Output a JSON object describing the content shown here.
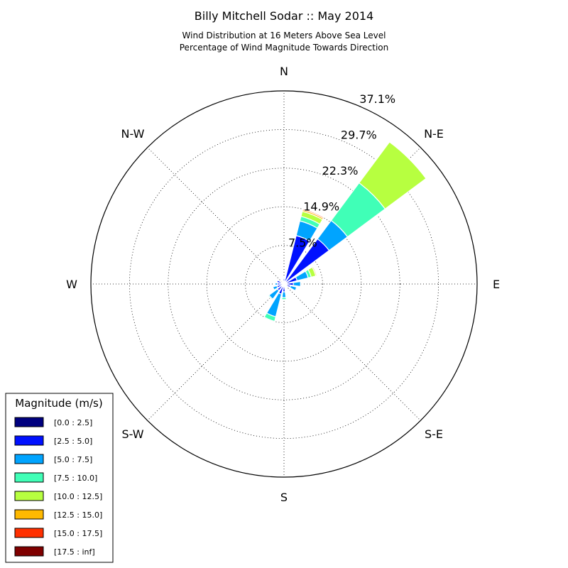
{
  "chart_data": {
    "type": "windrose",
    "title": "Billy Mitchell Sodar :: May 2014",
    "subtitle_lines": [
      "Wind Distribution at 16 Meters Above Sea Level",
      "Percentage of Wind Magnitude Towards Direction"
    ],
    "directions": [
      "N",
      "N-E",
      "E",
      "S-E",
      "S",
      "S-W",
      "W",
      "N-W"
    ],
    "ring_labels": [
      "7.5%",
      "14.9%",
      "22.3%",
      "29.7%",
      "37.1%"
    ],
    "r_max": 37.1,
    "grid": true,
    "legend": {
      "title": "Magnitude (m/s)",
      "placement": "bottom-left",
      "entries": [
        {
          "label": "[0.0 : 2.5]",
          "color": "#00007f"
        },
        {
          "label": "[2.5 : 5.0]",
          "color": "#0010ff"
        },
        {
          "label": "[5.0 : 7.5]",
          "color": "#00a4ff"
        },
        {
          "label": "[7.5 : 10.0]",
          "color": "#40ffb7"
        },
        {
          "label": "[10.0 : 12.5]",
          "color": "#b7ff40"
        },
        {
          "label": "[12.5 : 15.0]",
          "color": "#ffb900"
        },
        {
          "label": "[15.0 : 17.5]",
          "color": "#ff3000"
        },
        {
          "label": "[17.5 : inf]",
          "color": "#7f0000"
        }
      ]
    },
    "sectors": [
      {
        "angle": 0,
        "cumulative": [
          0.3,
          1.0,
          1.2,
          1.3
        ]
      },
      {
        "angle": 22.5,
        "cumulative": [
          0.5,
          9.6,
          12.5,
          13.4,
          14.4,
          14.7,
          14.9
        ]
      },
      {
        "angle": 45,
        "cumulative": [
          0.5,
          10.8,
          15.2,
          24.2,
          34.0,
          34.1
        ]
      },
      {
        "angle": 67.5,
        "cumulative": [
          0.3,
          2.6,
          4.8,
          5.4,
          6.3,
          6.5
        ]
      },
      {
        "angle": 90,
        "cumulative": [
          0.2,
          1.8,
          3.2,
          3.3
        ]
      },
      {
        "angle": 112.5,
        "cumulative": [
          0.2,
          1.3,
          2.5,
          2.6
        ]
      },
      {
        "angle": 135,
        "cumulative": [
          0.2,
          0.6,
          0.7
        ]
      },
      {
        "angle": 157.5,
        "cumulative": [
          0.1,
          0.3,
          0.4
        ]
      },
      {
        "angle": 180,
        "cumulative": [
          0.2,
          1.5,
          2.6,
          3.0
        ]
      },
      {
        "angle": 202.5,
        "cumulative": [
          0.3,
          2.0,
          6.5,
          7.4
        ]
      },
      {
        "angle": 225,
        "cumulative": [
          0.3,
          1.6,
          3.6,
          3.8
        ]
      },
      {
        "angle": 247.5,
        "cumulative": [
          0.3,
          1.4,
          2.2
        ]
      },
      {
        "angle": 270,
        "cumulative": [
          0.3,
          1.3,
          1.7
        ]
      },
      {
        "angle": 292.5,
        "cumulative": [
          0.2,
          1.4,
          1.5
        ]
      },
      {
        "angle": 315,
        "cumulative": [
          0.2,
          0.6
        ]
      },
      {
        "angle": 337.5,
        "cumulative": [
          0.2,
          0.4
        ]
      }
    ]
  }
}
